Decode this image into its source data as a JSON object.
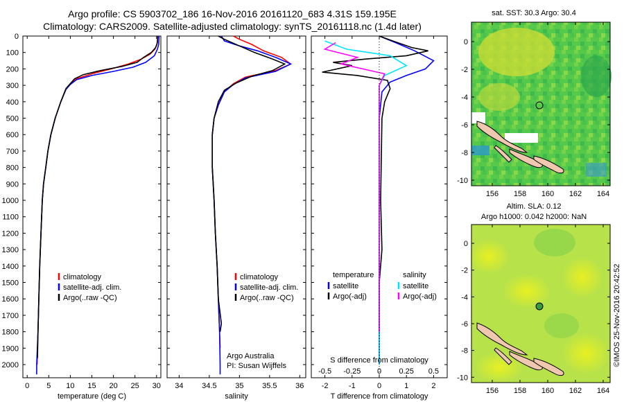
{
  "header": {
    "line1": "Argo profile: CS 5903702_186 16-Nov-2016 20161120_683 4.31S 159.195E",
    "line2": "Climatology: CARS2009. Satellite-adjusted climatology: synTS_20161118.nc (1.4d later)"
  },
  "side_label": "©IMOS 25-Nov-2016 20:42:52",
  "colors": {
    "climatology": "#ff0000",
    "satellite": "#0000ff",
    "argo": "#000000",
    "sat_salinity": "#00e5ff",
    "argo_salinity": "#ff00ff"
  },
  "chart_data": [
    {
      "type": "line",
      "panel": "temperature",
      "xlabel": "temperature (deg C)",
      "xlim": [
        -1,
        31
      ],
      "xticks": [
        0,
        5,
        10,
        15,
        20,
        25,
        30
      ],
      "ylim": [
        0,
        2080
      ],
      "yticks": [
        0,
        100,
        200,
        300,
        400,
        500,
        600,
        700,
        800,
        900,
        1000,
        1100,
        1200,
        1300,
        1400,
        1500,
        1600,
        1700,
        1800,
        1900,
        2000
      ],
      "legend": [
        "climatology",
        "satellite-adj. clim.",
        "Argo(..raw -QC)"
      ],
      "series": [
        {
          "name": "climatology",
          "color": "#ff0000",
          "points": [
            [
              30.3,
              0
            ],
            [
              30.1,
              50
            ],
            [
              29.6,
              80
            ],
            [
              28.5,
              110
            ],
            [
              26.5,
              140
            ],
            [
              23.5,
              170
            ],
            [
              19.5,
              200
            ],
            [
              15,
              230
            ],
            [
              11.5,
              260
            ],
            [
              10,
              290
            ],
            [
              9,
              320
            ],
            [
              7.8,
              400
            ],
            [
              6.5,
              500
            ],
            [
              5.5,
              600
            ],
            [
              4.8,
              700
            ],
            [
              4.3,
              800
            ],
            [
              3.8,
              900
            ],
            [
              3.5,
              1000
            ],
            [
              3.2,
              1200
            ],
            [
              2.9,
              1400
            ],
            [
              2.7,
              1600
            ],
            [
              2.5,
              1800
            ],
            [
              2.3,
              2000
            ]
          ]
        },
        {
          "name": "satellite-adj. clim.",
          "color": "#0000ff",
          "points": [
            [
              30.6,
              0
            ],
            [
              30.5,
              50
            ],
            [
              30.2,
              80
            ],
            [
              29.5,
              120
            ],
            [
              27.5,
              160
            ],
            [
              24.5,
              190
            ],
            [
              20,
              215
            ],
            [
              15,
              240
            ],
            [
              11.5,
              265
            ],
            [
              10,
              295
            ],
            [
              9,
              325
            ],
            [
              7.8,
              400
            ],
            [
              6.5,
              500
            ],
            [
              5.5,
              600
            ],
            [
              4.8,
              700
            ],
            [
              4.3,
              800
            ],
            [
              3.8,
              900
            ],
            [
              3.5,
              1000
            ],
            [
              3.2,
              1200
            ],
            [
              2.9,
              1400
            ],
            [
              2.7,
              1600
            ],
            [
              2.5,
              1800
            ],
            [
              2.2,
              2000
            ],
            [
              2.2,
              2060
            ]
          ]
        },
        {
          "name": "Argo(..raw -QC)",
          "color": "#000000",
          "points": [
            [
              30.3,
              0
            ],
            [
              30.2,
              40
            ],
            [
              29.8,
              70
            ],
            [
              28.8,
              100
            ],
            [
              27,
              130
            ],
            [
              25.5,
              160
            ],
            [
              22,
              185
            ],
            [
              17,
              210
            ],
            [
              13,
              235
            ],
            [
              11,
              260
            ],
            [
              10,
              290
            ],
            [
              9,
              320
            ],
            [
              7.8,
              400
            ],
            [
              6.5,
              500
            ],
            [
              5.5,
              600
            ],
            [
              4.8,
              700
            ],
            [
              4.3,
              800
            ],
            [
              3.8,
              900
            ],
            [
              3.5,
              1000
            ],
            [
              3.2,
              1200
            ],
            [
              2.9,
              1400
            ],
            [
              2.7,
              1600
            ],
            [
              2.5,
              1800
            ],
            [
              2.4,
              1960
            ]
          ]
        }
      ]
    },
    {
      "type": "line",
      "panel": "salinity",
      "xlabel": "salinity",
      "xlim": [
        33.8,
        36.1
      ],
      "xticks": [
        34,
        34.5,
        35,
        35.5,
        36
      ],
      "xticklabels": [
        "34",
        "34.5",
        "35",
        "35.5",
        "36"
      ],
      "ylim": [
        0,
        2080
      ],
      "legend": [
        "climatology",
        "satellite-adj. clim.",
        "Argo(..raw -QC)"
      ],
      "annotation": [
        "Argo Australia",
        "PI: Susan Wijffels"
      ],
      "series": [
        {
          "name": "climatology",
          "color": "#ff0000",
          "points": [
            [
              34.9,
              0
            ],
            [
              35.0,
              20
            ],
            [
              35.2,
              50
            ],
            [
              35.4,
              90
            ],
            [
              35.7,
              130
            ],
            [
              35.85,
              170
            ],
            [
              35.6,
              210
            ],
            [
              35.1,
              250
            ],
            [
              34.9,
              290
            ],
            [
              34.75,
              340
            ],
            [
              34.65,
              420
            ],
            [
              34.58,
              500
            ],
            [
              34.55,
              600
            ],
            [
              34.55,
              800
            ],
            [
              34.58,
              1000
            ],
            [
              34.6,
              1200
            ],
            [
              34.63,
              1400
            ],
            [
              34.65,
              1600
            ],
            [
              34.67,
              1800
            ],
            [
              34.68,
              1900
            ]
          ]
        },
        {
          "name": "satellite-adj. clim.",
          "color": "#0000ff",
          "points": [
            [
              34.7,
              0
            ],
            [
              34.75,
              30
            ],
            [
              35.0,
              60
            ],
            [
              35.3,
              90
            ],
            [
              35.6,
              130
            ],
            [
              35.85,
              170
            ],
            [
              35.6,
              215
            ],
            [
              35.1,
              255
            ],
            [
              34.9,
              295
            ],
            [
              34.75,
              340
            ],
            [
              34.65,
              420
            ],
            [
              34.58,
              500
            ],
            [
              34.55,
              600
            ],
            [
              34.55,
              800
            ],
            [
              34.58,
              1000
            ],
            [
              34.6,
              1200
            ],
            [
              34.63,
              1400
            ],
            [
              34.65,
              1600
            ],
            [
              34.67,
              1800
            ],
            [
              34.68,
              2000
            ],
            [
              34.68,
              2060
            ]
          ]
        },
        {
          "name": "Argo(..raw -QC)",
          "color": "#000000",
          "points": [
            [
              34.65,
              0
            ],
            [
              34.75,
              20
            ],
            [
              35.0,
              60
            ],
            [
              35.25,
              100
            ],
            [
              35.55,
              140
            ],
            [
              35.75,
              170
            ],
            [
              35.55,
              210
            ],
            [
              35.2,
              245
            ],
            [
              34.95,
              285
            ],
            [
              34.75,
              330
            ],
            [
              34.65,
              400
            ],
            [
              34.58,
              500
            ],
            [
              34.55,
              600
            ],
            [
              34.55,
              800
            ],
            [
              34.58,
              1000
            ],
            [
              34.6,
              1200
            ],
            [
              34.63,
              1400
            ],
            [
              34.65,
              1600
            ],
            [
              34.7,
              1750
            ],
            [
              34.68,
              1800
            ]
          ]
        }
      ]
    },
    {
      "type": "line",
      "panel": "difference",
      "xlabel": "T difference from climatology",
      "xlim": [
        -2.5,
        2.5
      ],
      "xticks": [
        -2,
        -1,
        0,
        1,
        2
      ],
      "top_xlabel": "S difference from climatology",
      "top_xticks": [
        -0.5,
        -0.25,
        0,
        0.25,
        0.5
      ],
      "ylim": [
        0,
        2080
      ],
      "legend_temperature": [
        "temperature",
        "satellite",
        "Argo(-adj)"
      ],
      "legend_salinity": [
        "salinity",
        "satellite",
        "Argo(-adj)"
      ],
      "series": [
        {
          "name": "temperature satellite",
          "color": "#0000ff",
          "points": [
            [
              0,
              0
            ],
            [
              0.6,
              40
            ],
            [
              1.3,
              90
            ],
            [
              2.0,
              150
            ],
            [
              1.7,
              200
            ],
            [
              1.0,
              240
            ],
            [
              0.4,
              280
            ],
            [
              0.1,
              340
            ],
            [
              0,
              500
            ],
            [
              0,
              1000
            ],
            [
              0,
              2000
            ]
          ]
        },
        {
          "name": "temperature Argo(-adj)",
          "color": "#000000",
          "points": [
            [
              0,
              0
            ],
            [
              0.5,
              30
            ],
            [
              1.2,
              70
            ],
            [
              1.8,
              90
            ],
            [
              1.0,
              120
            ],
            [
              -0.5,
              140
            ],
            [
              -1.7,
              160
            ],
            [
              -1.0,
              180
            ],
            [
              -2.1,
              220
            ],
            [
              -0.8,
              240
            ],
            [
              0.3,
              270
            ],
            [
              0.4,
              320
            ],
            [
              0.2,
              400
            ],
            [
              0.1,
              500
            ],
            [
              0.05,
              1000
            ],
            [
              0.1,
              1300
            ],
            [
              0,
              1500
            ],
            [
              0,
              1800
            ],
            [
              0,
              1960
            ]
          ]
        },
        {
          "name": "salinity satellite",
          "color": "#00e5ff",
          "points": [
            [
              -0.5,
              30
            ],
            [
              -0.3,
              80
            ],
            [
              0.1,
              120
            ],
            [
              0.25,
              180
            ],
            [
              0.05,
              240
            ],
            [
              0,
              300
            ],
            [
              0,
              500
            ],
            [
              0,
              1000
            ],
            [
              0,
              2000
            ]
          ]
        },
        {
          "name": "salinity Argo(-adj)",
          "color": "#ff00ff",
          "points": [
            [
              -0.4,
              40
            ],
            [
              -0.5,
              80
            ],
            [
              -0.2,
              130
            ],
            [
              -0.35,
              170
            ],
            [
              0.05,
              230
            ],
            [
              0,
              300
            ],
            [
              0,
              500
            ],
            [
              0,
              1000
            ],
            [
              0,
              1800
            ]
          ]
        }
      ]
    },
    {
      "type": "heatmap",
      "panel": "sst_map",
      "title": "sat. SST: 30.3 Argo: 30.4",
      "xlim": [
        154.5,
        164.5
      ],
      "ylim": [
        -10.4,
        1.4
      ],
      "xticks": [
        156,
        158,
        160,
        162,
        164
      ],
      "yticks": [
        0,
        -2,
        -4,
        -6,
        -8,
        -10
      ],
      "argo_position": [
        159.195,
        -4.31
      ]
    },
    {
      "type": "heatmap",
      "panel": "sla_map",
      "title": "Altim. SLA: 0.12",
      "subtitle": "Argo h1000: 0.042 h2000: NaN",
      "xlim": [
        154.5,
        164.5
      ],
      "ylim": [
        -10.4,
        1.4
      ],
      "xticks": [
        156,
        158,
        160,
        162,
        164
      ],
      "yticks": [
        0,
        -2,
        -4,
        -6,
        -8,
        -10
      ],
      "argo_position": [
        159.195,
        -4.31
      ]
    }
  ]
}
